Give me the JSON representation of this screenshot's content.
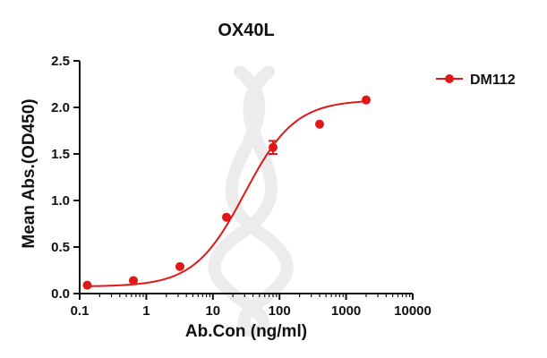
{
  "chart_data": {
    "type": "scatter",
    "title": "OX40L",
    "xlabel": "Ab.Con (ng/ml)",
    "ylabel": "Mean Abs.(OD450)",
    "xscale": "log",
    "xlim": [
      0.1,
      10000
    ],
    "ylim": [
      0,
      2.5
    ],
    "xticks": [
      "0.1",
      "1",
      "10",
      "100",
      "1000",
      "10000"
    ],
    "yticks": [
      "0.0",
      "0.5",
      "1.0",
      "1.5",
      "2.0",
      "2.5"
    ],
    "legend_position": "top-right",
    "fit": "4-parameter logistic",
    "series": [
      {
        "name": "DM112",
        "color": "#e01818",
        "x": [
          0.13,
          0.64,
          3.2,
          16,
          80,
          400,
          2000
        ],
        "y": [
          0.09,
          0.14,
          0.29,
          0.82,
          1.57,
          1.82,
          2.08
        ],
        "error": [
          0,
          0,
          0,
          0,
          0.07,
          0,
          0
        ]
      }
    ]
  }
}
